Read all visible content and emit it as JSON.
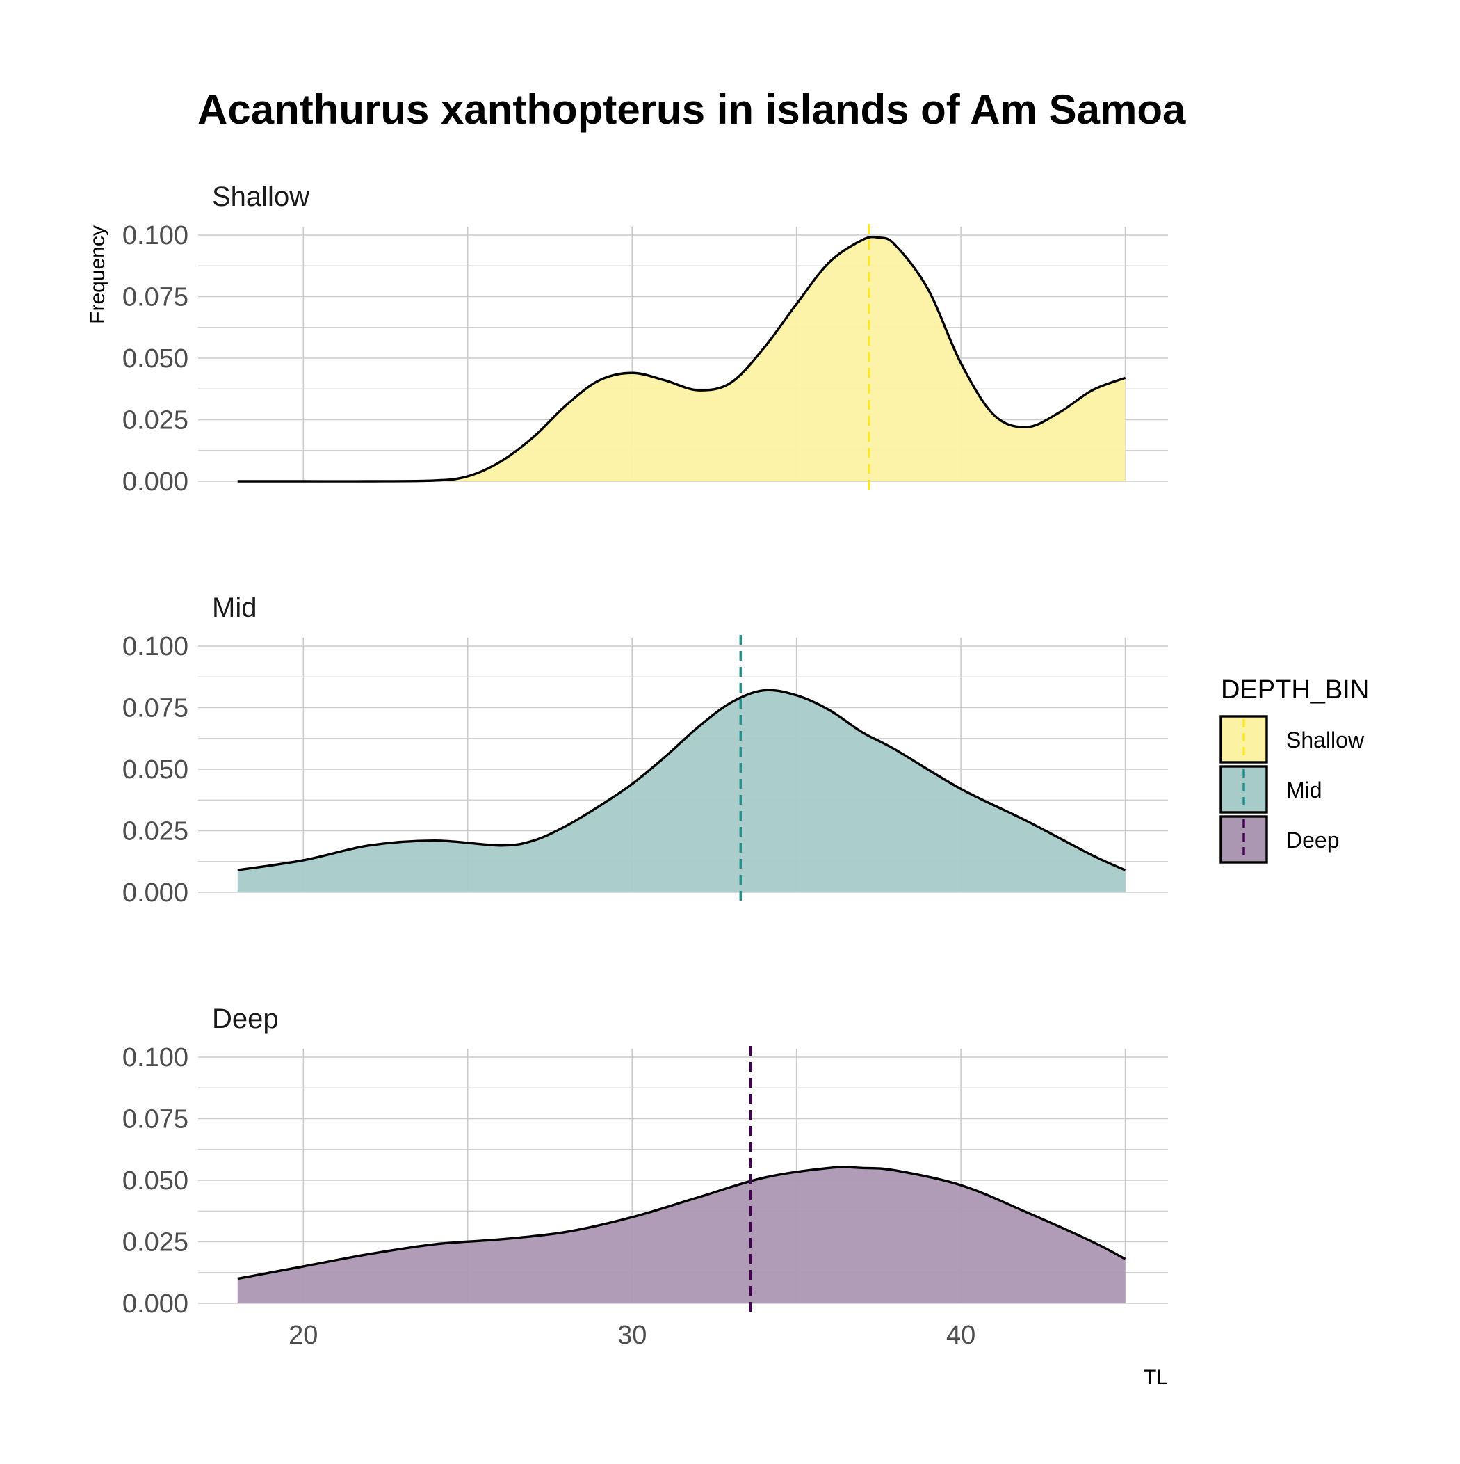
{
  "chart_data": {
    "type": "area",
    "title": "Acanthurus xanthopterus in islands of Am Samoa",
    "xlabel": "TL",
    "ylabel": "Frequency",
    "xlim": [
      16.8,
      46.3
    ],
    "ylim": [
      0,
      0.1
    ],
    "x_ticks": [
      20,
      30,
      40
    ],
    "y_ticks": [
      "0.000",
      "0.025",
      "0.050",
      "0.075",
      "0.100"
    ],
    "grid": true,
    "legend": {
      "title": "DEPTH_BIN",
      "placement": "right",
      "entries": [
        "Shallow",
        "Mid",
        "Deep"
      ]
    },
    "series": [
      {
        "name": "Shallow",
        "color": "#FDE725",
        "fill": "#FCF2A3",
        "mean": 37.2,
        "x": [
          18,
          20,
          22,
          24,
          25,
          26,
          27,
          28,
          29,
          30,
          31,
          32,
          33,
          34,
          35,
          36,
          37,
          37.5,
          38,
          39,
          40,
          41,
          42,
          43,
          44,
          45
        ],
        "y": [
          0.0,
          0.0,
          0.0,
          0.0003,
          0.002,
          0.008,
          0.018,
          0.031,
          0.041,
          0.044,
          0.041,
          0.037,
          0.04,
          0.054,
          0.072,
          0.089,
          0.098,
          0.099,
          0.096,
          0.078,
          0.048,
          0.027,
          0.022,
          0.028,
          0.037,
          0.042
        ]
      },
      {
        "name": "Mid",
        "color": "#21908C",
        "fill": "#A6CBC9",
        "mean": 33.3,
        "x": [
          18,
          20,
          22,
          24,
          26,
          27,
          28,
          29,
          30,
          31,
          32,
          33,
          34,
          35,
          36,
          37,
          38,
          40,
          42,
          44,
          45
        ],
        "y": [
          0.009,
          0.013,
          0.019,
          0.021,
          0.019,
          0.021,
          0.027,
          0.035,
          0.044,
          0.055,
          0.067,
          0.077,
          0.082,
          0.08,
          0.074,
          0.065,
          0.058,
          0.042,
          0.029,
          0.015,
          0.009
        ],
        "name_shown_in_facet": true
      },
      {
        "name": "Deep",
        "color": "#440154",
        "fill": "#AC97B2",
        "mean": 33.6,
        "x": [
          18,
          20,
          22,
          24,
          26,
          28,
          30,
          32,
          34,
          36,
          37,
          38,
          40,
          42,
          44,
          45
        ],
        "y": [
          0.01,
          0.015,
          0.02,
          0.024,
          0.026,
          0.029,
          0.035,
          0.043,
          0.051,
          0.055,
          0.055,
          0.054,
          0.048,
          0.037,
          0.025,
          0.018
        ]
      }
    ]
  }
}
